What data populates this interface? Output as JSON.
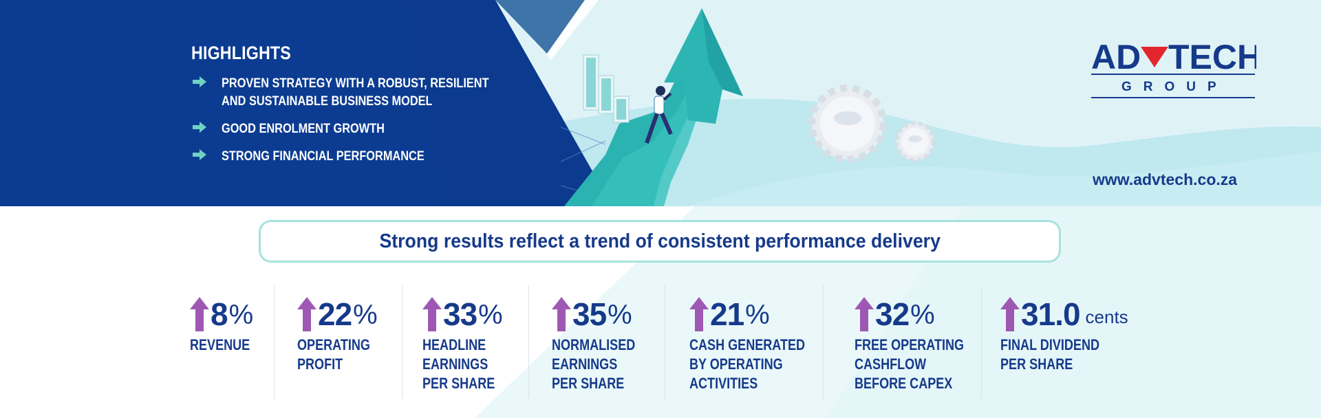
{
  "colors": {
    "navy": "#0b3a8f",
    "brand_blue": "#163a8a",
    "teal": "#2bb3b1",
    "arrow_purple": "#9e58b4",
    "banner_light": "#dff3f7"
  },
  "highlights": {
    "title": "HIGHLIGHTS",
    "items": [
      {
        "icon": "arrow-right-icon",
        "text": "PROVEN STRATEGY WITH A ROBUST, RESILIENT AND SUSTAINABLE BUSINESS MODEL"
      },
      {
        "icon": "arrow-right-icon",
        "text": "GOOD ENROLMENT GROWTH"
      },
      {
        "icon": "arrow-right-icon",
        "text": "STRONG FINANCIAL PERFORMANCE"
      }
    ]
  },
  "logo": {
    "wordmark_left": "AD",
    "wordmark_right": "TECH",
    "subtitle": "GROUP"
  },
  "website": "www.advtech.co.za",
  "tagline": "Strong results reflect a trend of consistent performance delivery",
  "metrics": [
    {
      "value": "8",
      "unit": "%",
      "label": "REVENUE",
      "icon": "up-arrow-icon"
    },
    {
      "value": "22",
      "unit": "%",
      "label": "OPERATING\nPROFIT",
      "icon": "up-arrow-icon"
    },
    {
      "value": "33",
      "unit": "%",
      "label": "HEADLINE\nEARNINGS\nPER SHARE",
      "icon": "up-arrow-icon"
    },
    {
      "value": "35",
      "unit": "%",
      "label": "NORMALISED\nEARNINGS\nPER SHARE",
      "icon": "up-arrow-icon"
    },
    {
      "value": "21",
      "unit": "%",
      "label": "CASH GENERATED\nBY OPERATING\nACTIVITIES",
      "icon": "up-arrow-icon"
    },
    {
      "value": "32",
      "unit": "%",
      "label": "FREE OPERATING\nCASHFLOW\nBEFORE CAPEX",
      "icon": "up-arrow-icon"
    },
    {
      "value": "31.0",
      "unit": "cents",
      "label": "FINAL DIVIDEND\nPER SHARE",
      "icon": "up-arrow-icon"
    }
  ]
}
